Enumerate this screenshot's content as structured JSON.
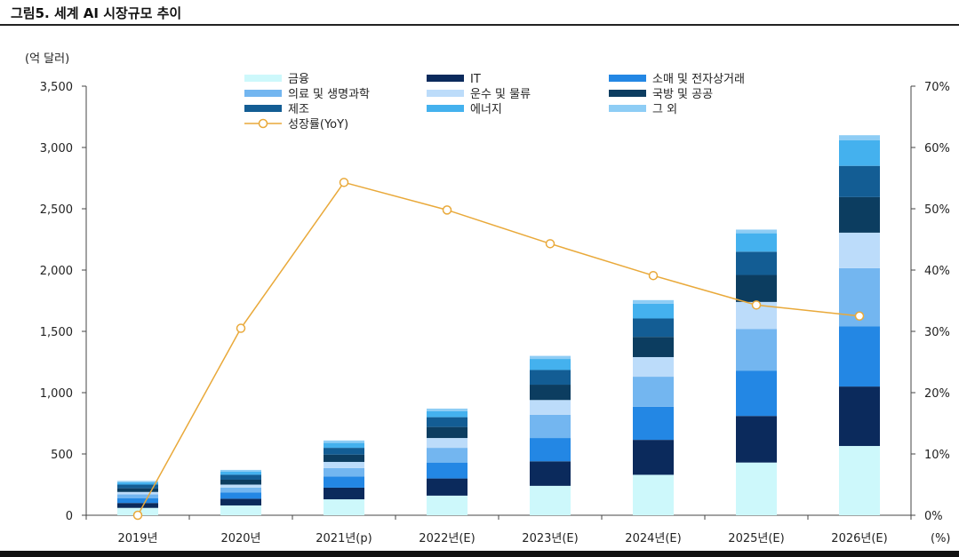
{
  "figure": {
    "title": "그림5.  세계 AI 시장규모 추이"
  },
  "chart_data": {
    "type": "bar",
    "stacked": true,
    "categories": [
      "2019년",
      "2020년",
      "2021년(p)",
      "2022년(E)",
      "2023년(E)",
      "2024년(E)",
      "2025년(E)",
      "2026년(E)"
    ],
    "ylabel": "(억 달러)",
    "y2label": "(%)",
    "ylim": [
      0,
      3500
    ],
    "yticks": [
      "0",
      "500",
      "1,000",
      "1,500",
      "2,000",
      "2,500",
      "3,000",
      "3,500"
    ],
    "y2lim": [
      0,
      70
    ],
    "y2ticks": [
      "0%",
      "10%",
      "20%",
      "30%",
      "40%",
      "50%",
      "60%",
      "70%"
    ],
    "grid": false,
    "legend_position": "top",
    "series": [
      {
        "name": "금융",
        "color": "#cdf8fb",
        "values": [
          60,
          80,
          130,
          160,
          240,
          330,
          430,
          565
        ]
      },
      {
        "name": "IT",
        "color": "#0b2a5c",
        "values": [
          40,
          55,
          95,
          140,
          200,
          285,
          380,
          485
        ]
      },
      {
        "name": "소매 및 전자상거래",
        "color": "#2387e4",
        "values": [
          40,
          50,
          90,
          130,
          190,
          270,
          370,
          490
        ]
      },
      {
        "name": "의료 및 생명과학",
        "color": "#73b6f0",
        "values": [
          30,
          40,
          70,
          120,
          190,
          245,
          340,
          475
        ]
      },
      {
        "name": "운수 및 물류",
        "color": "#bcdcfa",
        "values": [
          20,
          25,
          50,
          80,
          120,
          160,
          220,
          290
        ]
      },
      {
        "name": "국방 및 공공",
        "color": "#0c3d60",
        "values": [
          30,
          40,
          60,
          90,
          125,
          165,
          220,
          290
        ]
      },
      {
        "name": "제조",
        "color": "#135d94",
        "values": [
          30,
          40,
          55,
          80,
          120,
          150,
          190,
          255
        ]
      },
      {
        "name": "에너지",
        "color": "#44b1ee",
        "values": [
          20,
          25,
          40,
          50,
          90,
          120,
          150,
          210
        ]
      },
      {
        "name": "그 외",
        "color": "#8ecdf5",
        "values": [
          10,
          15,
          20,
          20,
          25,
          30,
          30,
          40
        ]
      }
    ],
    "line": {
      "name": "성장률(YoY)",
      "color": "#e9a93a",
      "axis": "right",
      "values": [
        0,
        30.5,
        54.3,
        49.8,
        44.3,
        39.1,
        34.3,
        32.5
      ]
    }
  }
}
